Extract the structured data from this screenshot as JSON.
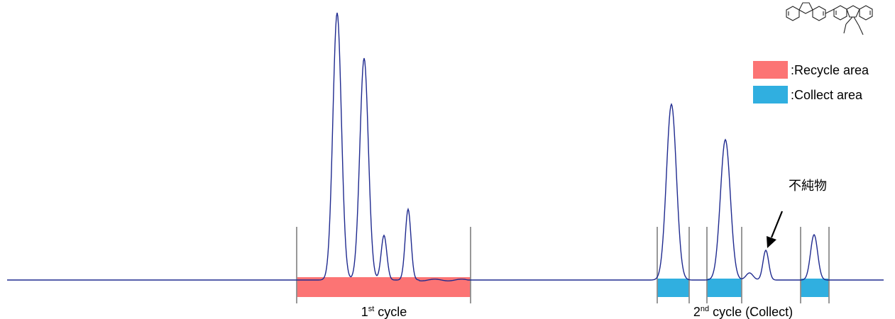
{
  "chart_data": {
    "type": "line",
    "grid": false,
    "legend_placement": "top-right",
    "series": [
      {
        "baseline": 0,
        "peaks": [
          {
            "x": 475,
            "height": 377,
            "width": 6
          },
          {
            "x": 513,
            "height": 313,
            "width": 6
          },
          {
            "x": 541,
            "height": 63,
            "width": 4
          },
          {
            "x": 575,
            "height": 100,
            "width": 4
          },
          {
            "x": 946,
            "height": 248,
            "width": 7
          },
          {
            "x": 1022,
            "height": 198,
            "width": 7
          },
          {
            "x": 1056,
            "height": 10,
            "width": 5
          },
          {
            "x": 1079,
            "height": 42,
            "width": 4
          },
          {
            "x": 1147,
            "height": 64,
            "width": 5
          }
        ]
      }
    ],
    "bands": [
      {
        "kind": "recycle",
        "x_start": 418,
        "x_end": 663,
        "color": "#fc7474"
      },
      {
        "kind": "collect",
        "x_start": 926,
        "x_end": 971,
        "color": "#30afe0"
      },
      {
        "kind": "collect",
        "x_start": 996,
        "x_end": 1045,
        "color": "#30afe0"
      },
      {
        "kind": "collect",
        "x_start": 1128,
        "x_end": 1168,
        "color": "#30afe0"
      }
    ],
    "dividers_x": [
      418,
      663,
      926,
      971,
      996,
      1045,
      1128,
      1168
    ],
    "legend": [
      {
        "label": ":Recycle area",
        "color": "#fc7474"
      },
      {
        "label": ":Collect area",
        "color": "#30afe0"
      }
    ],
    "cycle_labels": {
      "first": {
        "main": "1",
        "sup": "st",
        "rest": " cycle"
      },
      "second": {
        "main": "2",
        "sup": "nd",
        "rest": " cycle (Collect)"
      }
    },
    "annotation": {
      "text": "不純物"
    }
  },
  "colors": {
    "trace": "#1f2a8f",
    "divider": "#8c8c8c",
    "recycle": "#fc7474",
    "collect": "#30afe0"
  }
}
